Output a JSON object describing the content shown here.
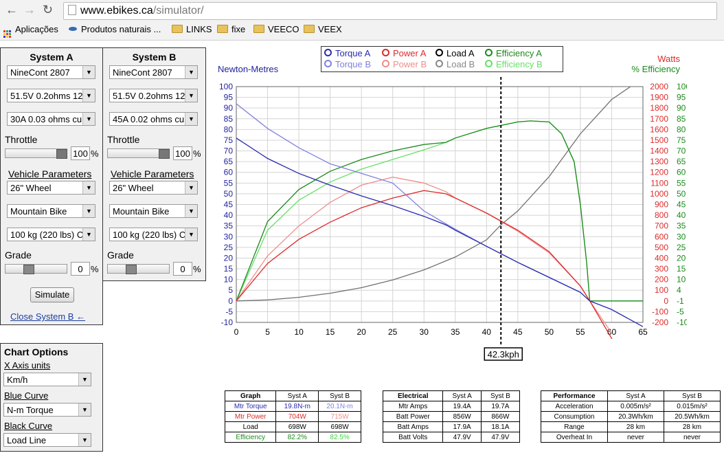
{
  "browser": {
    "url_host": "www.ebikes.ca",
    "url_path": "/simulator/",
    "bookmarks": [
      "Aplicações",
      "Produtos naturais ...",
      "LINKS",
      "fixe",
      "VEECO",
      "VEEX"
    ]
  },
  "system_a": {
    "title": "System A",
    "motor": "NineCont 2807",
    "battery": "51.5V 0.2ohms 12",
    "controller": "30A 0.03 ohms cu",
    "throttle_label": "Throttle",
    "throttle_value": "100",
    "throttle_level": 1.0,
    "vehicle_params_label": "Vehicle Parameters",
    "wheel": "26\"  Wheel",
    "bike": "Mountain Bike",
    "mass": "100 kg (220 lbs) C",
    "grade_label": "Grade",
    "grade_value": "0",
    "simulate_label": "Simulate",
    "close_b_label": "Close System B ←"
  },
  "system_b": {
    "title": "System B",
    "motor": "NineCont 2807",
    "battery": "51.5V 0.2ohms 12",
    "controller": "45A 0.02 ohms cu",
    "throttle_label": "Throttle",
    "throttle_value": "100",
    "throttle_level": 1.0,
    "vehicle_params_label": "Vehicle Parameters",
    "wheel": "26\"  Wheel",
    "bike": "Mountain Bike",
    "mass": "100 kg (220 lbs) C",
    "grade_label": "Grade",
    "grade_value": "0"
  },
  "chart_options": {
    "title": "Chart Options",
    "x_axis_label": "X Axis units",
    "x_axis_value": "Km/h",
    "blue_label": "Blue Curve",
    "blue_value": "N-m Torque",
    "black_label": "Black Curve",
    "black_value": "Load Line"
  },
  "legend": {
    "torque_a": "Torque A",
    "power_a": "Power A",
    "load_a": "Load A",
    "eff_a": "Efficiency A",
    "torque_b": "Torque B",
    "power_b": "Power B",
    "load_b": "Load B",
    "eff_b": "Efficiency B"
  },
  "colors": {
    "torque_a": "#2a2ab0",
    "torque_b": "#8080e0",
    "power_a": "#dd2a2a",
    "power_b": "#f08c8c",
    "load_a": "#707070",
    "eff_a": "#1a8a1a",
    "eff_b": "#66e066"
  },
  "chart_data": {
    "type": "line",
    "xlabel": "",
    "ylabel_left": "Newton-Metres",
    "ylabel_right_1": "Watts",
    "ylabel_right_2": "% Efficiency",
    "xlim": [
      0,
      65
    ],
    "ylim_left": [
      -10,
      100
    ],
    "ylim_watts": [
      -200,
      2000
    ],
    "ylim_eff_labels": [
      "100",
      "95",
      "90",
      "85",
      "80",
      "75",
      "70",
      "65",
      "60",
      "55",
      "50",
      "45",
      "40",
      "35",
      "30",
      "25",
      "20",
      "15",
      "10",
      "4",
      "-1",
      "-5",
      "-10"
    ],
    "x_ticks": [
      0,
      5,
      10,
      15,
      20,
      25,
      30,
      35,
      40,
      45,
      50,
      55,
      60,
      65
    ],
    "y_left_ticks": [
      100,
      95,
      90,
      85,
      80,
      75,
      70,
      65,
      60,
      55,
      50,
      45,
      40,
      35,
      30,
      25,
      20,
      15,
      10,
      5,
      0,
      -5,
      -10
    ],
    "y_watts_ticks": [
      2000,
      1900,
      1800,
      1700,
      1600,
      1500,
      1400,
      1300,
      1200,
      1100,
      1000,
      900,
      800,
      700,
      600,
      500,
      400,
      300,
      200,
      100,
      0,
      -100,
      -200
    ],
    "marker_x": 42.3,
    "marker_label": "42.3kph",
    "grid": true,
    "series": [
      {
        "name": "Torque A",
        "axis": "nm",
        "key": "torque_a",
        "x": [
          0,
          5,
          10,
          15,
          20,
          25,
          30,
          33.5,
          35,
          40,
          45,
          50,
          55,
          56.5,
          60,
          65
        ],
        "y": [
          76,
          66.5,
          59.5,
          54,
          49,
          44.5,
          39.5,
          35.5,
          33,
          25.5,
          18,
          11,
          4,
          0,
          -4,
          -12
        ]
      },
      {
        "name": "Torque B",
        "axis": "nm",
        "key": "torque_b",
        "x": [
          0,
          5,
          10,
          15,
          20,
          25,
          30,
          33.5,
          35,
          40,
          45,
          50,
          55,
          56.5,
          60,
          62.5
        ],
        "y": [
          92,
          80.5,
          71.5,
          64,
          59.5,
          55,
          42,
          36,
          33.5,
          25.5,
          18,
          11,
          4,
          0,
          -4,
          -8
        ]
      },
      {
        "name": "Power A",
        "axis": "w",
        "key": "power_a",
        "x": [
          0,
          5,
          10,
          15,
          20,
          25,
          30,
          33.5,
          35,
          40,
          45,
          50,
          55,
          56.5,
          60,
          61.5
        ],
        "y": [
          0,
          350,
          575,
          735,
          870,
          960,
          1030,
          1000,
          960,
          820,
          660,
          460,
          140,
          0,
          -350,
          -500
        ]
      },
      {
        "name": "Power B",
        "axis": "w",
        "key": "power_b",
        "x": [
          0,
          5,
          10,
          15,
          20,
          25,
          30,
          33.5,
          35,
          40,
          45,
          50,
          55,
          56.5,
          60
        ],
        "y": [
          0,
          420,
          700,
          920,
          1080,
          1155,
          1100,
          1020,
          960,
          820,
          650,
          450,
          140,
          0,
          -300
        ]
      },
      {
        "name": "Load A",
        "axis": "nm",
        "key": "load_a",
        "x": [
          0,
          5,
          10,
          15,
          20,
          25,
          30,
          35,
          40,
          42.3,
          45,
          50,
          55,
          60,
          63
        ],
        "y": [
          0,
          0.5,
          1.7,
          3.6,
          6.2,
          9.8,
          14.5,
          20.5,
          28.5,
          35.5,
          42,
          58,
          78,
          94,
          100
        ]
      },
      {
        "name": "Efficiency A",
        "axis": "nm",
        "key": "eff_a",
        "x": [
          0,
          5,
          10,
          15,
          20,
          25,
          30,
          33.5,
          35,
          40,
          45,
          47,
          50,
          52,
          54,
          55,
          56,
          56.5,
          60,
          65
        ],
        "y": [
          0,
          37,
          52,
          60.5,
          66,
          70,
          73,
          74,
          76,
          80.5,
          83.5,
          84,
          83.5,
          78,
          65,
          45,
          18,
          0,
          0,
          0
        ]
      },
      {
        "name": "Efficiency B",
        "axis": "nm",
        "key": "eff_b",
        "x": [
          0,
          5,
          10,
          15,
          20,
          25,
          30,
          33.5,
          35,
          40,
          45,
          47,
          50,
          52,
          54,
          55,
          56,
          56.5,
          60,
          65
        ],
        "y": [
          0,
          33,
          47,
          55.5,
          61.5,
          66,
          70.5,
          74,
          76,
          80.5,
          83.5,
          84,
          83.5,
          78,
          65,
          45,
          18,
          0,
          0,
          0
        ]
      }
    ]
  },
  "tables": {
    "graph": {
      "headers": [
        "Graph",
        "Syst A",
        "Syst B"
      ],
      "rows": [
        [
          "Mtr Torque",
          "19.8N-m",
          "20.1N-m"
        ],
        [
          "Mtr Power",
          "704W",
          "715W"
        ],
        [
          "Load",
          "698W",
          "698W"
        ],
        [
          "Efficiency",
          "82.2%",
          "82.5%"
        ]
      ]
    },
    "electrical": {
      "headers": [
        "Electrical",
        "Syst A",
        "Syst B"
      ],
      "rows": [
        [
          "Mtr Amps",
          "19.4A",
          "19.7A"
        ],
        [
          "Batt Power",
          "856W",
          "866W"
        ],
        [
          "Batt Amps",
          "17.9A",
          "18.1A"
        ],
        [
          "Batt Volts",
          "47.9V",
          "47.9V"
        ]
      ]
    },
    "performance": {
      "headers": [
        "Performance",
        "Syst A",
        "Syst B"
      ],
      "rows": [
        [
          "Acceleration",
          "0.005m/s²",
          "0.015m/s²"
        ],
        [
          "Consumption",
          "20.3Wh/km",
          "20.5Wh/km"
        ],
        [
          "Range",
          "28 km",
          "28 km"
        ],
        [
          "Overheat In",
          "never",
          "never"
        ]
      ]
    }
  }
}
